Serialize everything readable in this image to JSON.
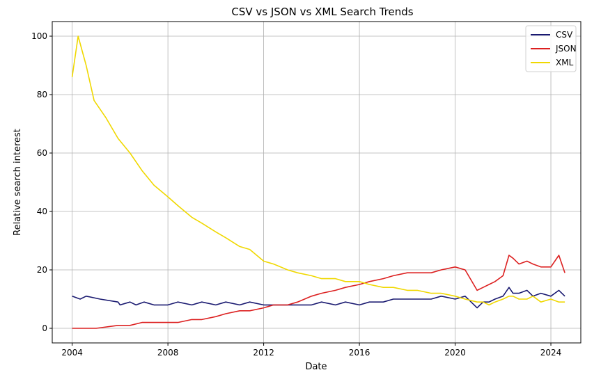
{
  "chart_data": {
    "type": "line",
    "title": "CSV vs JSON vs XML Search Trends",
    "xlabel": "Date",
    "ylabel": "Relative search interest",
    "xlim": [
      "2003-03-01",
      "2025-04-01"
    ],
    "ylim": [
      -5,
      105
    ],
    "xticks": [
      "2004",
      "2008",
      "2012",
      "2016",
      "2020",
      "2024"
    ],
    "yticks": [
      0,
      20,
      40,
      60,
      80,
      100
    ],
    "grid": true,
    "legend_position": "top-right",
    "series": [
      {
        "name": "CSV",
        "color": "#191970",
        "x": [
          "2004-01",
          "2004-05",
          "2004-08",
          "2005-03",
          "2005-12",
          "2006-01",
          "2006-06",
          "2006-09",
          "2007-01",
          "2007-06",
          "2008-01",
          "2008-06",
          "2009-01",
          "2009-06",
          "2010-01",
          "2010-06",
          "2011-01",
          "2011-06",
          "2012-01",
          "2012-06",
          "2013-01",
          "2013-06",
          "2014-01",
          "2014-06",
          "2015-01",
          "2015-06",
          "2016-01",
          "2016-06",
          "2017-01",
          "2017-06",
          "2018-01",
          "2018-06",
          "2019-01",
          "2019-06",
          "2020-01",
          "2020-06",
          "2020-12",
          "2021-03",
          "2021-06",
          "2021-09",
          "2022-01",
          "2022-04",
          "2022-06",
          "2022-09",
          "2023-01",
          "2023-04",
          "2023-08",
          "2024-01",
          "2024-05",
          "2024-08"
        ],
        "y": [
          11,
          10,
          11,
          10,
          9,
          8,
          9,
          8,
          9,
          8,
          8,
          9,
          8,
          9,
          8,
          9,
          8,
          9,
          8,
          8,
          8,
          8,
          8,
          9,
          8,
          9,
          8,
          9,
          9,
          10,
          10,
          10,
          10,
          11,
          10,
          11,
          7,
          9,
          9,
          10,
          11,
          14,
          12,
          12,
          13,
          11,
          12,
          11,
          13,
          11
        ]
      },
      {
        "name": "JSON",
        "color": "#dc2020",
        "x": [
          "2004-01",
          "2005-01",
          "2005-12",
          "2006-06",
          "2006-12",
          "2007-06",
          "2008-01",
          "2008-06",
          "2009-01",
          "2009-06",
          "2010-01",
          "2010-06",
          "2011-01",
          "2011-06",
          "2012-01",
          "2012-06",
          "2013-01",
          "2013-06",
          "2014-01",
          "2014-06",
          "2015-01",
          "2015-06",
          "2016-01",
          "2016-06",
          "2017-01",
          "2017-06",
          "2018-01",
          "2018-06",
          "2019-01",
          "2019-06",
          "2020-01",
          "2020-06",
          "2020-12",
          "2021-03",
          "2021-06",
          "2021-09",
          "2022-01",
          "2022-04",
          "2022-06",
          "2022-09",
          "2023-01",
          "2023-04",
          "2023-08",
          "2024-01",
          "2024-05",
          "2024-08"
        ],
        "y": [
          0,
          0,
          1,
          1,
          2,
          2,
          2,
          2,
          3,
          3,
          4,
          5,
          6,
          6,
          7,
          8,
          8,
          9,
          11,
          12,
          13,
          14,
          15,
          16,
          17,
          18,
          19,
          19,
          19,
          20,
          21,
          20,
          13,
          14,
          15,
          16,
          18,
          25,
          24,
          22,
          23,
          22,
          21,
          21,
          25,
          19
        ]
      },
      {
        "name": "XML",
        "color": "#f0d800",
        "x": [
          "2004-01",
          "2004-04",
          "2004-08",
          "2004-12",
          "2005-06",
          "2005-12",
          "2006-06",
          "2006-12",
          "2007-06",
          "2008-01",
          "2008-06",
          "2009-01",
          "2009-06",
          "2010-01",
          "2010-06",
          "2011-01",
          "2011-06",
          "2012-01",
          "2012-06",
          "2013-01",
          "2013-06",
          "2014-01",
          "2014-06",
          "2015-01",
          "2015-06",
          "2016-01",
          "2016-06",
          "2017-01",
          "2017-06",
          "2018-01",
          "2018-06",
          "2019-01",
          "2019-06",
          "2020-01",
          "2020-06",
          "2020-12",
          "2021-03",
          "2021-06",
          "2021-09",
          "2022-01",
          "2022-04",
          "2022-06",
          "2022-09",
          "2023-01",
          "2023-04",
          "2023-08",
          "2024-01",
          "2024-05",
          "2024-08"
        ],
        "y": [
          86,
          100,
          90,
          78,
          72,
          65,
          60,
          54,
          49,
          45,
          42,
          38,
          36,
          33,
          31,
          28,
          27,
          23,
          22,
          20,
          19,
          18,
          17,
          17,
          16,
          16,
          15,
          14,
          14,
          13,
          13,
          12,
          12,
          11,
          10,
          9,
          9,
          8,
          9,
          10,
          11,
          11,
          10,
          10,
          11,
          9,
          10,
          9,
          9
        ]
      }
    ]
  }
}
